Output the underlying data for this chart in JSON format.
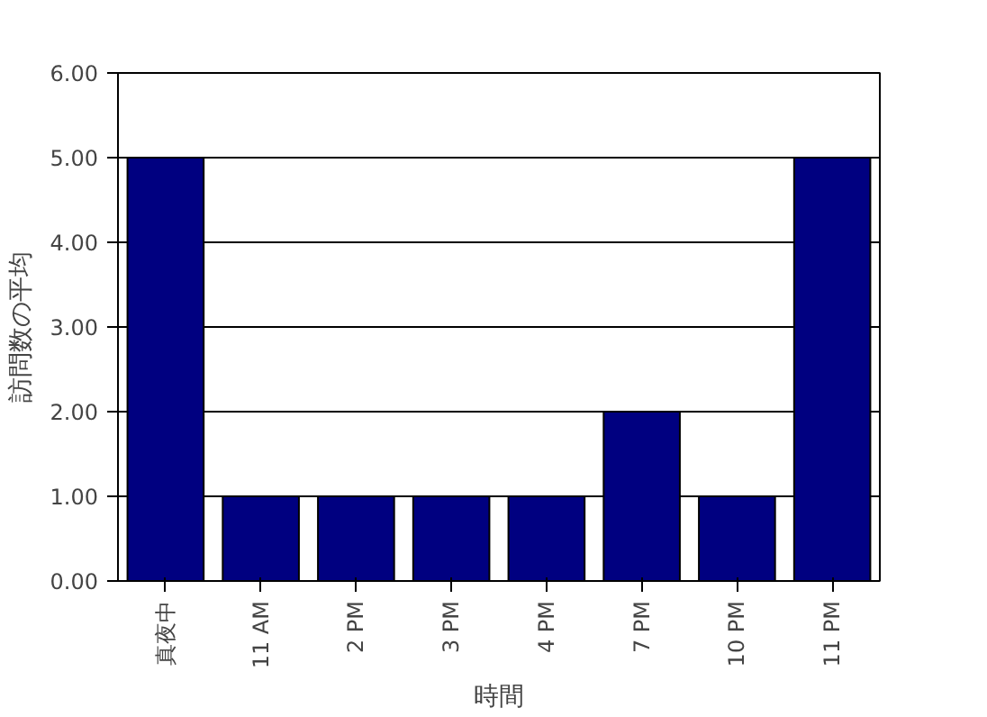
{
  "chart_data": {
    "type": "bar",
    "xlabel": "時間",
    "ylabel": "訪問数の平均",
    "categories": [
      "真夜中",
      "11 AM",
      "2 PM",
      "3 PM",
      "4 PM",
      "7 PM",
      "10 PM",
      "11 PM"
    ],
    "values": [
      5,
      1,
      1,
      1,
      1,
      2,
      1,
      5
    ],
    "color": "#000080",
    "ylim": [
      0,
      6
    ],
    "yticks": [
      {
        "value": 0,
        "label": "0.00"
      },
      {
        "value": 1,
        "label": "1.00"
      },
      {
        "value": 2,
        "label": "2.00"
      },
      {
        "value": 3,
        "label": "3.00"
      },
      {
        "value": 4,
        "label": "4.00"
      },
      {
        "value": 5,
        "label": "5.00"
      },
      {
        "value": 6,
        "label": "6.00"
      }
    ],
    "grid": "y"
  }
}
